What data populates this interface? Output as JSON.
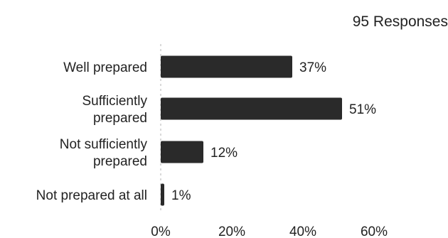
{
  "chart_data": {
    "type": "bar",
    "orientation": "horizontal",
    "title": "",
    "subtitle": "95 Responses",
    "xlabel": "",
    "ylabel": "",
    "categories": [
      [
        "Well prepared"
      ],
      [
        "Sufficiently",
        "prepared"
      ],
      [
        "Not sufficiently",
        "prepared"
      ],
      [
        "Not prepared at all"
      ]
    ],
    "values": [
      37,
      51,
      12,
      1
    ],
    "value_labels": [
      "37%",
      "51%",
      "12%",
      "1%"
    ],
    "xlim": [
      0,
      60
    ],
    "ticks": [
      0,
      20,
      40,
      60
    ],
    "tick_labels": [
      "0%",
      "20%",
      "40%",
      "60%"
    ],
    "grid": false,
    "bar_color": "#2a2a2a",
    "zero_line_color": "#d9d9d9"
  }
}
